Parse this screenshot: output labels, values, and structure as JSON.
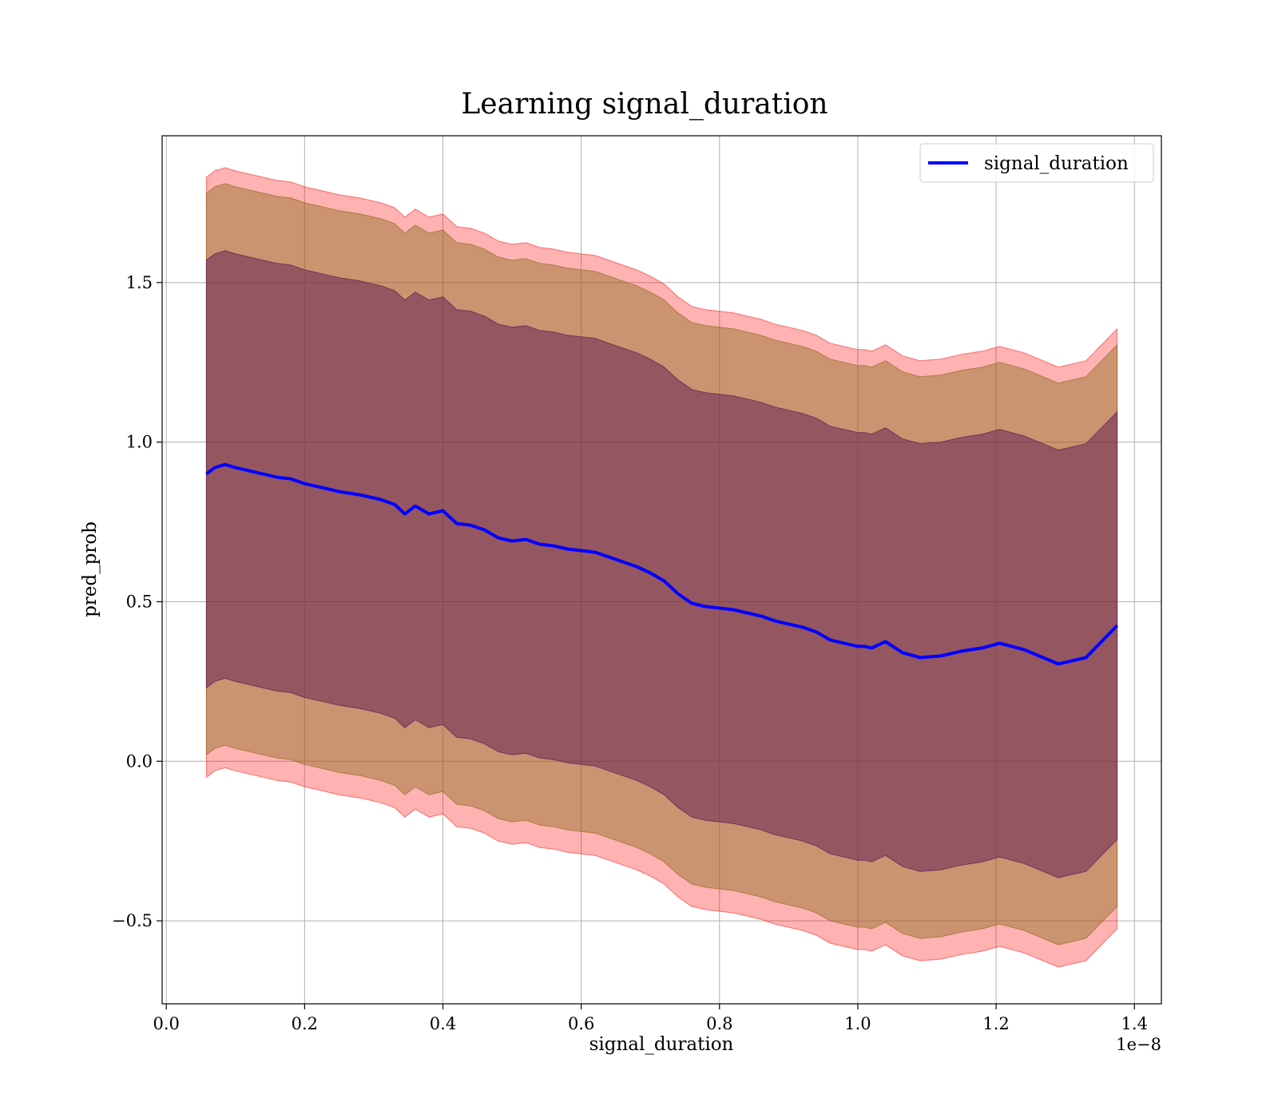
{
  "chart_data": {
    "type": "line",
    "title": "Learning signal_duration",
    "xlabel": "signal_duration",
    "ylabel": "pred_prob",
    "x_offset_text": "1e−8",
    "xlim": [
      -0.006,
      1.439
    ],
    "ylim": [
      -0.76,
      1.96
    ],
    "x_ticks": [
      0.0,
      0.2,
      0.4,
      0.6,
      0.8,
      1.0,
      1.2,
      1.4
    ],
    "x_tick_labels": [
      "0.0",
      "0.2",
      "0.4",
      "0.6",
      "0.8",
      "1.0",
      "1.2",
      "1.4"
    ],
    "y_ticks": [
      -0.5,
      0.0,
      0.5,
      1.0,
      1.5
    ],
    "y_tick_labels": [
      "−0.5",
      "0.0",
      "0.5",
      "1.0",
      "1.5"
    ],
    "grid": true,
    "legend_position": "top-right",
    "series": [
      {
        "name": "signal_duration",
        "color": "#0000ff",
        "x": [
          0.058,
          0.07,
          0.085,
          0.1,
          0.12,
          0.14,
          0.16,
          0.18,
          0.2,
          0.22,
          0.25,
          0.28,
          0.31,
          0.33,
          0.345,
          0.36,
          0.38,
          0.4,
          0.42,
          0.44,
          0.46,
          0.48,
          0.5,
          0.52,
          0.54,
          0.56,
          0.58,
          0.6,
          0.62,
          0.64,
          0.66,
          0.68,
          0.7,
          0.72,
          0.74,
          0.76,
          0.78,
          0.8,
          0.82,
          0.84,
          0.86,
          0.88,
          0.9,
          0.92,
          0.94,
          0.96,
          0.98,
          1.0,
          1.01,
          1.02,
          1.03,
          1.04,
          1.065,
          1.09,
          1.12,
          1.15,
          1.18,
          1.205,
          1.24,
          1.29,
          1.33,
          1.375
        ],
        "values": [
          0.9,
          0.92,
          0.93,
          0.92,
          0.91,
          0.9,
          0.89,
          0.885,
          0.87,
          0.86,
          0.845,
          0.835,
          0.82,
          0.805,
          0.775,
          0.8,
          0.775,
          0.785,
          0.745,
          0.74,
          0.725,
          0.7,
          0.69,
          0.695,
          0.68,
          0.675,
          0.665,
          0.66,
          0.655,
          0.64,
          0.625,
          0.61,
          0.59,
          0.565,
          0.525,
          0.495,
          0.485,
          0.48,
          0.475,
          0.465,
          0.455,
          0.44,
          0.43,
          0.42,
          0.405,
          0.38,
          0.37,
          0.36,
          0.36,
          0.355,
          0.365,
          0.375,
          0.34,
          0.325,
          0.33,
          0.345,
          0.355,
          0.37,
          0.35,
          0.305,
          0.325,
          0.425
        ]
      }
    ],
    "bands": [
      {
        "color": "#ff0000",
        "opacity": 0.3,
        "upper_offset": 0.93,
        "lower_offset": -0.95
      },
      {
        "color": "#8c6d1f",
        "opacity": 0.45,
        "upper_offset": 0.88,
        "lower_offset": -0.88
      },
      {
        "color": "#5e1a52",
        "opacity": 0.5,
        "upper_offset": 0.67,
        "lower_offset": -0.67
      }
    ]
  }
}
